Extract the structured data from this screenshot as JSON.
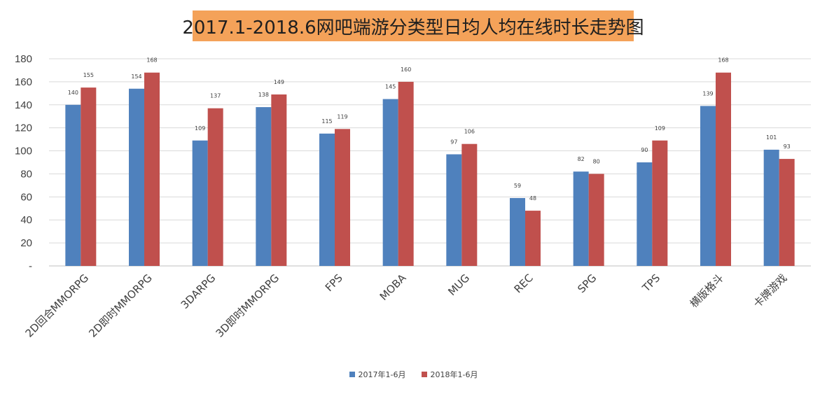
{
  "chart_data": {
    "type": "bar",
    "title": "2017.1-2018.6网吧端游分类型日均人均在线时长走势图",
    "xlabel": "",
    "ylabel": "",
    "ylim": [
      0,
      180
    ],
    "ytick_step": 20,
    "ytick_labels": [
      "-",
      "20",
      "40",
      "60",
      "80",
      "100",
      "120",
      "140",
      "160",
      "180"
    ],
    "grid": true,
    "legend_position": "bottom",
    "categories": [
      "2D回合MMORPG",
      "2D即时MMORPG",
      "3DARPG",
      "3D即时MMORPG",
      "FPS",
      "MOBA",
      "MUG",
      "REC",
      "SPG",
      "TPS",
      "横版格斗",
      "卡牌游戏"
    ],
    "series": [
      {
        "name": "2017年1-6月",
        "color": "#4f81bd",
        "values": [
          140,
          154,
          109,
          138,
          115,
          145,
          97,
          59,
          82,
          90,
          139,
          101
        ]
      },
      {
        "name": "2018年1-6月",
        "color": "#c0504d",
        "values": [
          155,
          168,
          137,
          149,
          119,
          160,
          106,
          48,
          80,
          109,
          168,
          93
        ]
      }
    ]
  }
}
